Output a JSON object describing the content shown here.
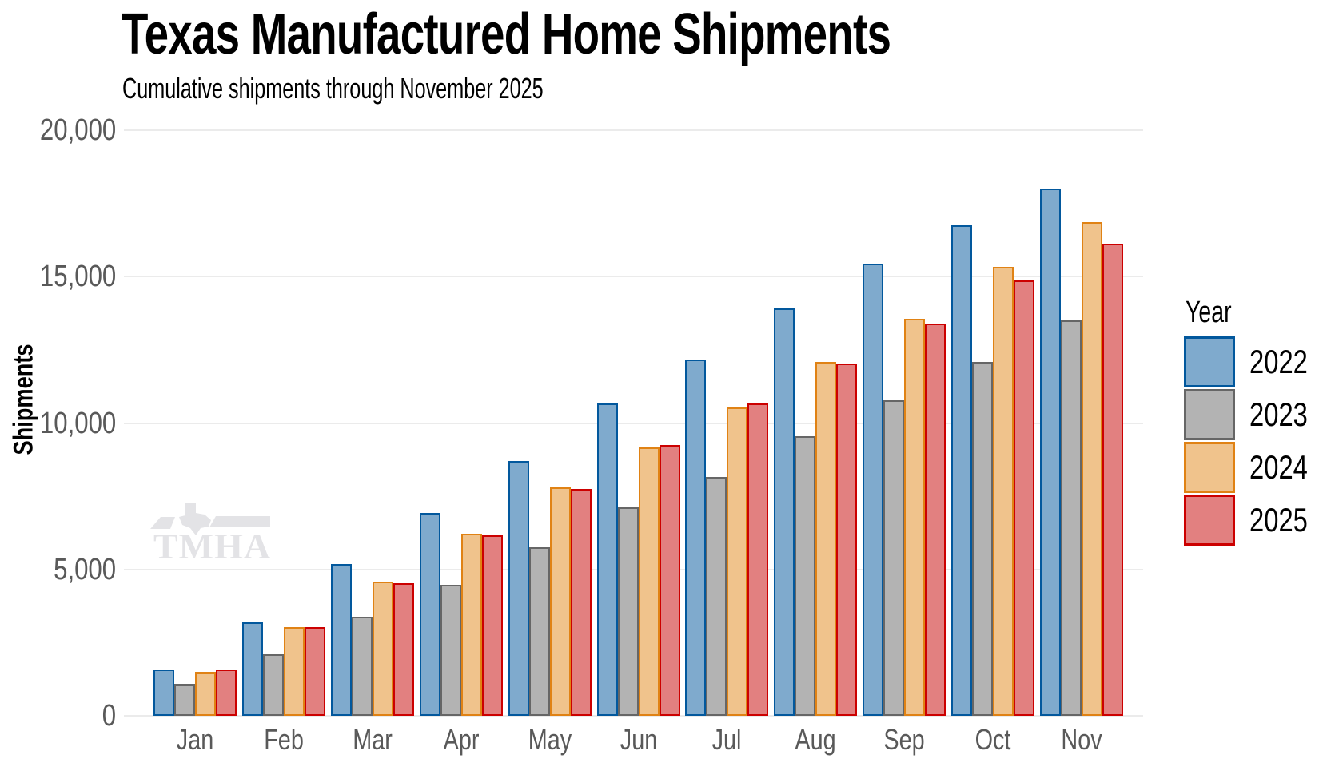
{
  "chart_data": {
    "type": "bar",
    "title": "Texas Manufactured Home Shipments",
    "subtitle": "Cumulative shipments through November 2025",
    "ylabel": "Shipments",
    "legend_title": "Year",
    "legend_position": "right",
    "grid": true,
    "watermark": "TMHA",
    "categories": [
      "Jan",
      "Feb",
      "Mar",
      "Apr",
      "May",
      "Jun",
      "Jul",
      "Aug",
      "Sep",
      "Oct",
      "Nov"
    ],
    "ylim": [
      0,
      20000
    ],
    "yticks": [
      0,
      5000,
      10000,
      15000,
      20000
    ],
    "ytick_labels": [
      "0",
      "5,000",
      "10,000",
      "15,000",
      "20,000"
    ],
    "series": [
      {
        "name": "2022",
        "fill": "#7FAACD",
        "stroke": "#02589D",
        "values": [
          1590,
          3180,
          5180,
          6940,
          8700,
          10680,
          12170,
          13920,
          15430,
          16750,
          18010
        ]
      },
      {
        "name": "2023",
        "fill": "#B3B3B3",
        "stroke": "#666666",
        "values": [
          1100,
          2090,
          3370,
          4480,
          5770,
          7130,
          8170,
          9560,
          10770,
          12080,
          13500
        ]
      },
      {
        "name": "2024",
        "fill": "#F0C38C",
        "stroke": "#E08214",
        "values": [
          1500,
          3040,
          4580,
          6220,
          7810,
          9180,
          10520,
          12100,
          13550,
          15340,
          16870
        ]
      },
      {
        "name": "2025",
        "fill": "#E28080",
        "stroke": "#CC0000",
        "values": [
          1570,
          3020,
          4540,
          6170,
          7760,
          9260,
          10660,
          12040,
          13410,
          14860,
          16130
        ]
      }
    ],
    "colors": {
      "grid": "#EBEBEB",
      "axis_text": "#595959",
      "title_text": "#000000",
      "watermark": "#E3E3E6"
    }
  }
}
